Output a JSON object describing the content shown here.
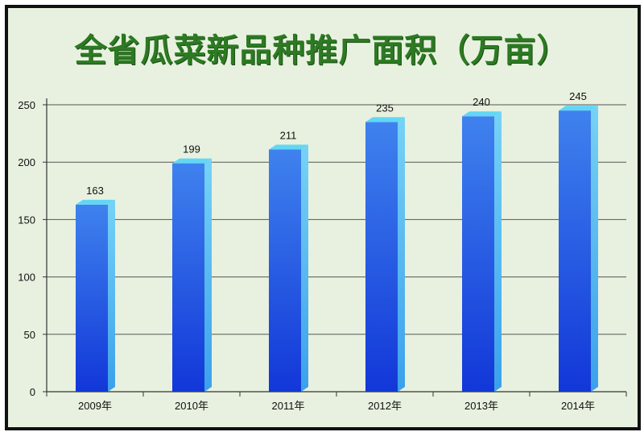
{
  "chart_data": {
    "type": "bar",
    "title": "全省瓜菜新品种推广面积（万亩）",
    "categories": [
      "2009年",
      "2010年",
      "2011年",
      "2012年",
      "2013年",
      "2014年"
    ],
    "values": [
      163,
      199,
      211,
      235,
      240,
      245
    ],
    "ylim": [
      0,
      250
    ],
    "yticks": [
      0,
      50,
      100,
      150,
      200,
      250
    ],
    "grid": true,
    "colors": {
      "bar_front": "#1f57e6",
      "bar_top": "#62d7f5",
      "bar_side": "#4fb8ef",
      "title": "#2c7a22"
    }
  }
}
